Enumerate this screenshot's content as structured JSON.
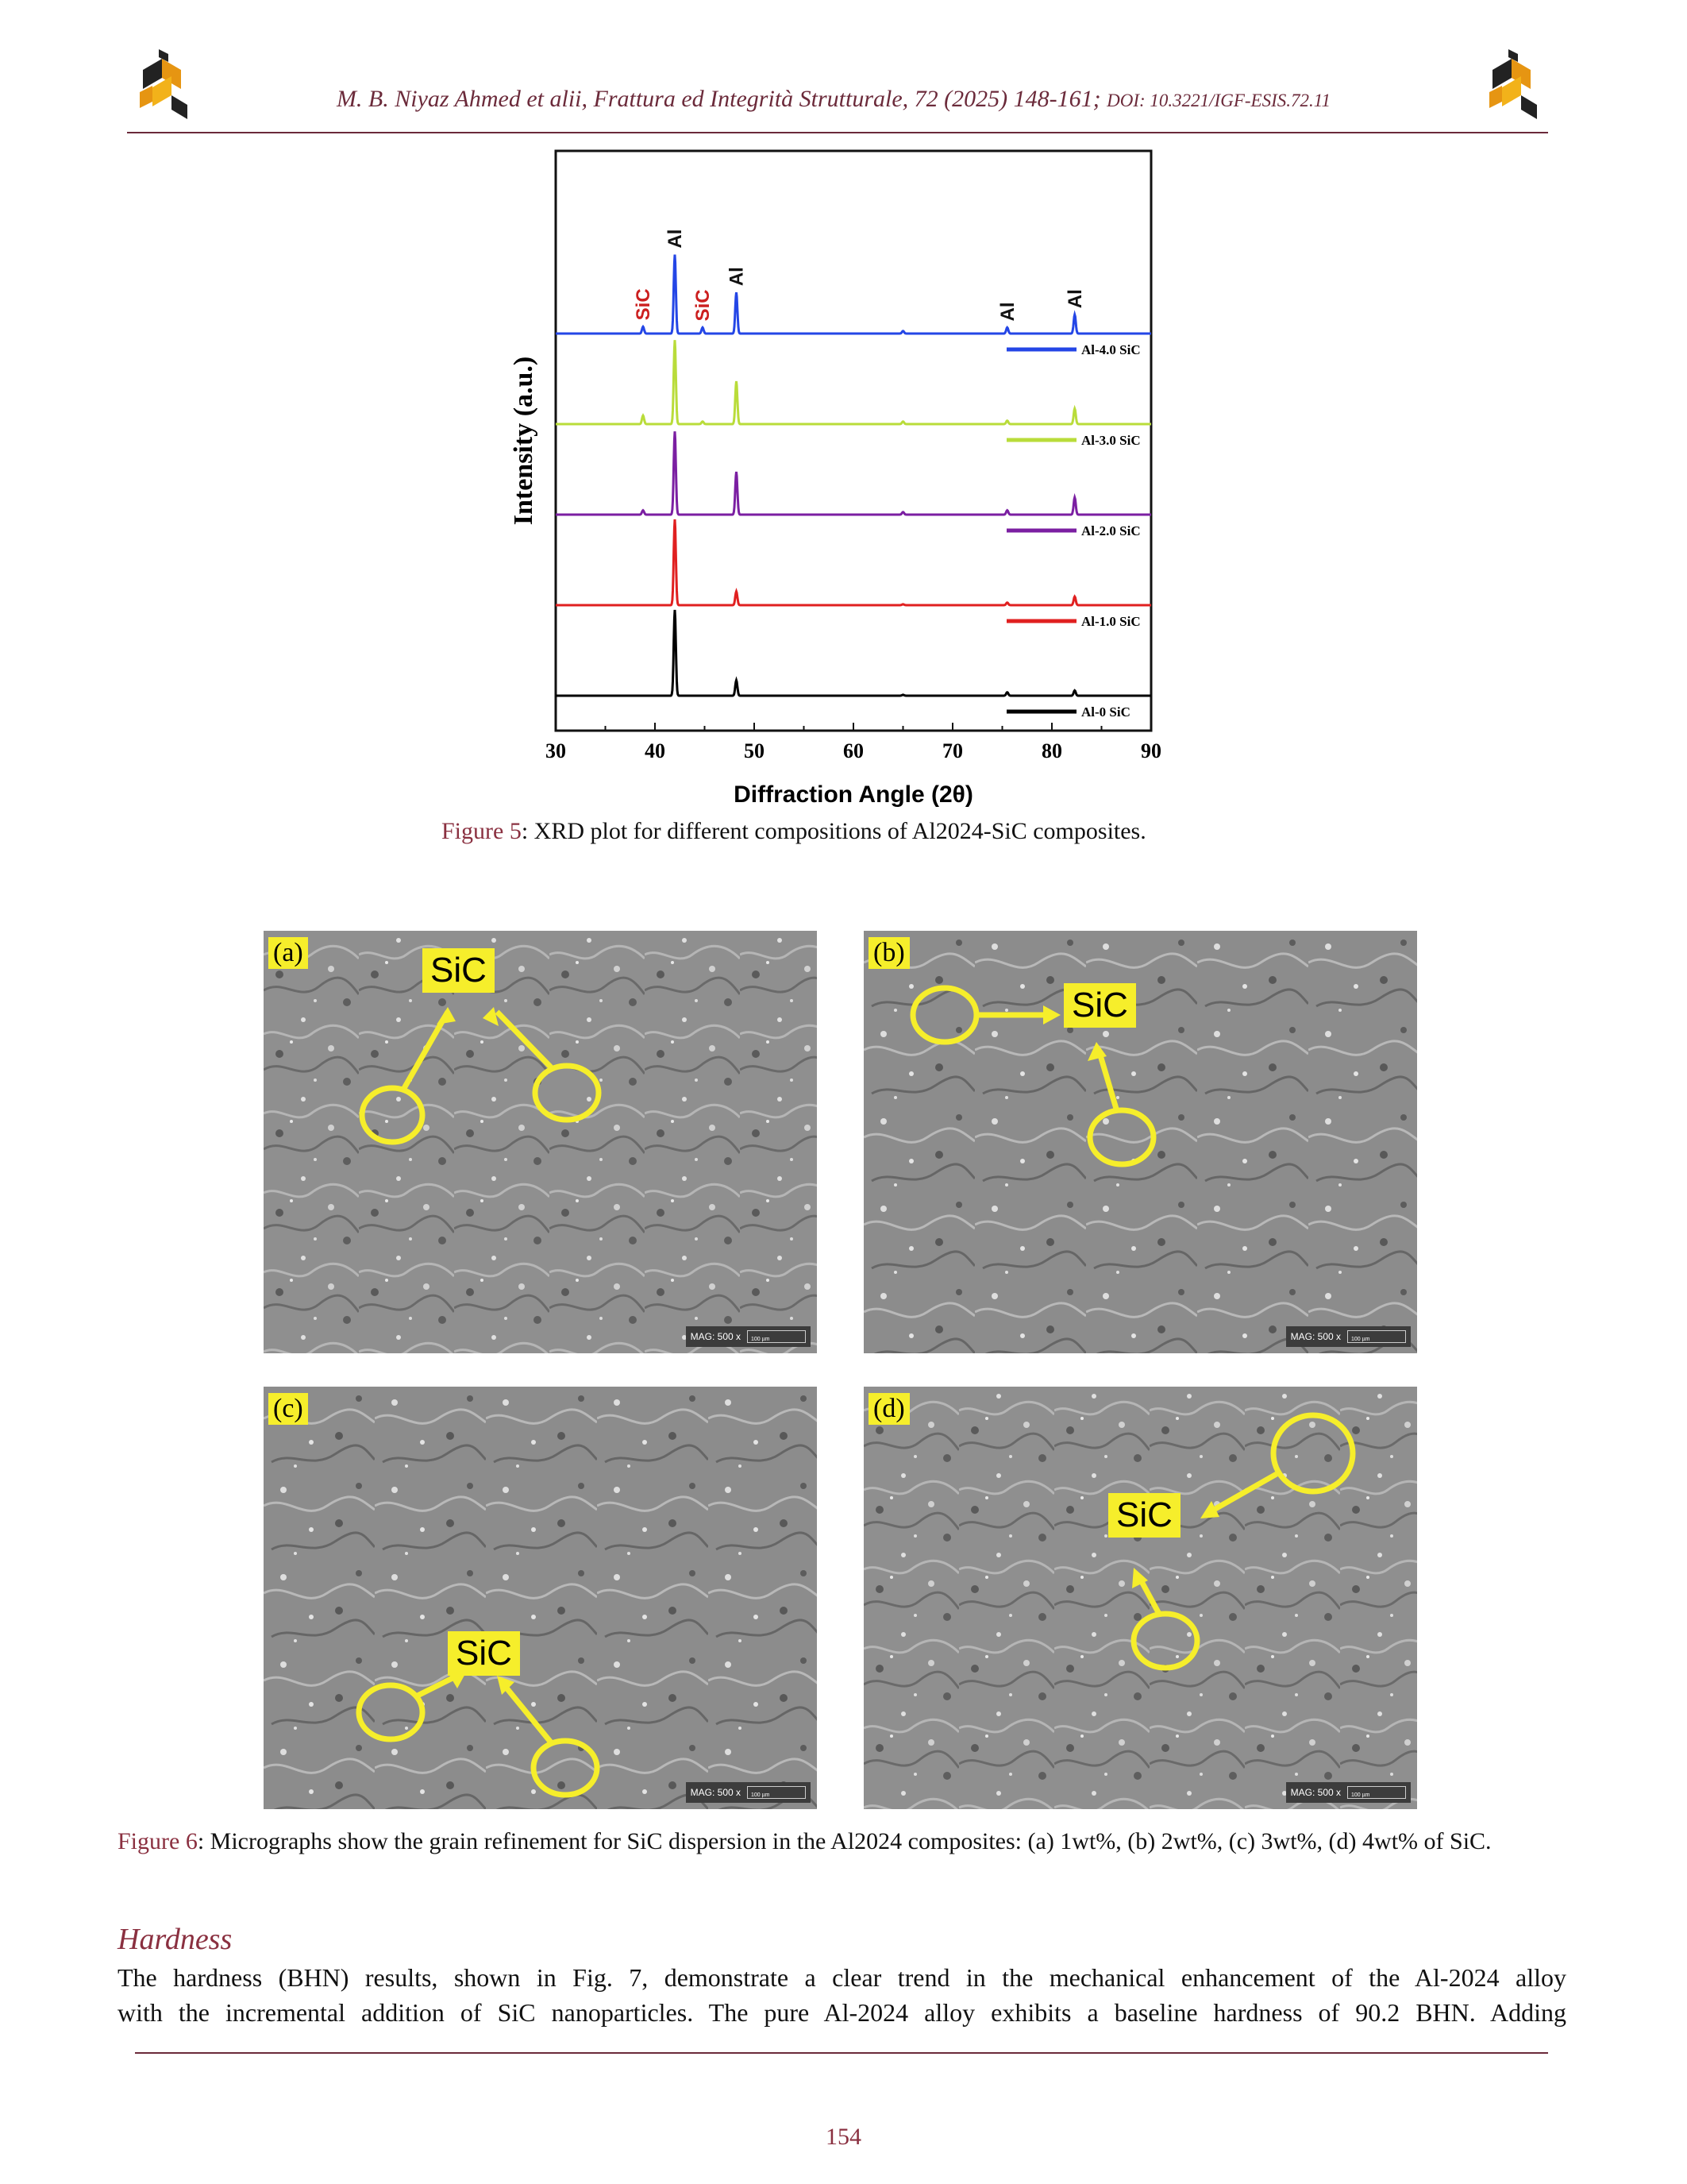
{
  "header": {
    "citation": "M. B. Niyaz Ahmed et alii, Frattura ed Integrità Strutturale, 72 (2025) 148-161;",
    "doi": "DOI: 10.3221/IGF-ESIS.72.11"
  },
  "chart_data": {
    "type": "line",
    "xlabel": "Diffraction Angle (2θ)",
    "ylabel": "Intensity (a.u.)",
    "xlim": [
      30,
      90
    ],
    "xticks": [
      30,
      40,
      50,
      60,
      70,
      80,
      90
    ],
    "grid": false,
    "legend": "right, one entry below each trace",
    "series": [
      {
        "name": "Al-0 SiC",
        "color": "#000000",
        "baseline": 0,
        "peaks": [
          [
            42.0,
            1.0
          ],
          [
            48.2,
            0.18
          ],
          [
            65.0,
            0.01
          ],
          [
            75.5,
            0.04
          ],
          [
            82.3,
            0.06
          ]
        ]
      },
      {
        "name": "Al-1.0 SiC",
        "color": "#e02020",
        "baseline": 1,
        "peaks": [
          [
            42.0,
            1.0
          ],
          [
            48.2,
            0.16
          ],
          [
            65.0,
            0.01
          ],
          [
            75.5,
            0.03
          ],
          [
            82.3,
            0.1
          ]
        ]
      },
      {
        "name": "Al-2.0 SiC",
        "color": "#7b1fa2",
        "baseline": 2,
        "peaks": [
          [
            38.8,
            0.05
          ],
          [
            42.0,
            0.97
          ],
          [
            48.2,
            0.5
          ],
          [
            65.0,
            0.03
          ],
          [
            75.5,
            0.05
          ],
          [
            82.3,
            0.2
          ]
        ]
      },
      {
        "name": "Al-3.0 SiC",
        "color": "#b9dc3a",
        "baseline": 3,
        "peaks": [
          [
            38.8,
            0.1
          ],
          [
            42.0,
            0.98
          ],
          [
            44.8,
            0.03
          ],
          [
            48.2,
            0.5
          ],
          [
            65.0,
            0.03
          ],
          [
            75.5,
            0.04
          ],
          [
            82.3,
            0.18
          ]
        ]
      },
      {
        "name": "Al-4.0 SiC",
        "color": "#2446e6",
        "baseline": 4,
        "peaks": [
          [
            38.8,
            0.08
          ],
          [
            42.0,
            0.92
          ],
          [
            44.8,
            0.07
          ],
          [
            48.2,
            0.48
          ],
          [
            65.0,
            0.03
          ],
          [
            75.5,
            0.07
          ],
          [
            82.3,
            0.22
          ]
        ]
      }
    ],
    "annotations": [
      {
        "text": "SiC",
        "x": 38.8,
        "color": "#cc1f1f"
      },
      {
        "text": "Al",
        "x": 42.0,
        "color": "#111111"
      },
      {
        "text": "SiC",
        "x": 44.8,
        "color": "#cc1f1f"
      },
      {
        "text": "Al",
        "x": 48.2,
        "color": "#111111"
      },
      {
        "text": "Al",
        "x": 75.5,
        "color": "#111111"
      },
      {
        "text": "Al",
        "x": 82.3,
        "color": "#111111"
      }
    ]
  },
  "figure5": {
    "label": "Figure 5",
    "caption": ": XRD plot for different compositions of Al2024-SiC composites."
  },
  "micrographs": {
    "panels": [
      {
        "tag": "(a)",
        "label": "SiC"
      },
      {
        "tag": "(b)",
        "label": "SiC"
      },
      {
        "tag": "(c)",
        "label": "SiC"
      },
      {
        "tag": "(d)",
        "label": "SiC"
      }
    ],
    "mag_text": "MAG: 500 x",
    "scale_text": "100 µm",
    "highlight_color": "#f6ee2b"
  },
  "figure6": {
    "label": "Figure 6",
    "caption": ": Micrographs show the grain refinement for SiC dispersion in the Al2024 composites: (a) 1wt%, (b) 2wt%, (c) 3wt%, (d) 4wt% of SiC."
  },
  "section": {
    "heading": "Hardness",
    "line1": "The hardness (BHN) results, shown in Fig. 7, demonstrate a clear trend in the mechanical enhancement of the Al-2024 alloy",
    "line2": "with the incremental addition of SiC nanoparticles. The pure Al-2024 alloy exhibits a baseline hardness of 90.2 BHN. Adding"
  },
  "page_number": "154"
}
